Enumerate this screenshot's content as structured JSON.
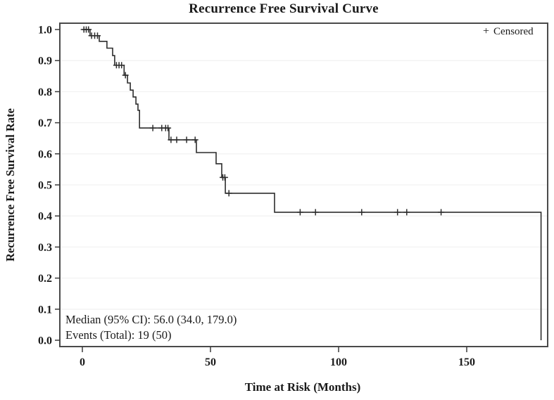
{
  "header": {
    "title": "Recurrence Free Survival Curve"
  },
  "legend": {
    "marker": "+",
    "label": "Censored"
  },
  "annotation": {
    "median_line": "Median (95% CI): 56.0 (34.0, 179.0)",
    "events_line": "Events (Total): 19 (50)"
  },
  "colors": {
    "curve": "#2d2d2d",
    "frame": "#4a4a4a",
    "tick": "#3a3a3a",
    "grid": "#f2f2f2",
    "text": "#1a1a1a",
    "background": "#ffffff"
  },
  "chart_data": {
    "type": "line",
    "subtype": "kaplan_meier_step",
    "title": "Recurrence Free Survival Curve",
    "xlabel": "Time at Risk (Months)",
    "ylabel": "Recurrence Free Survival Rate",
    "xlim": [
      -9,
      182
    ],
    "ylim": [
      -0.02,
      1.02
    ],
    "x_ticks": [
      0,
      50,
      100,
      150
    ],
    "y_ticks": [
      {
        "v": 0.0,
        "label": "0.0"
      },
      {
        "v": 0.1,
        "label": "0.1"
      },
      {
        "v": 0.2,
        "label": "0.2"
      },
      {
        "v": 0.3,
        "label": "0.3"
      },
      {
        "v": 0.4,
        "label": "0.4"
      },
      {
        "v": 0.5,
        "label": "0.5"
      },
      {
        "v": 0.6,
        "label": "0.6"
      },
      {
        "v": 0.7,
        "label": "0.7"
      },
      {
        "v": 0.8,
        "label": "0.8"
      },
      {
        "v": 0.9,
        "label": "0.9"
      },
      {
        "v": 1.0,
        "label": "1.0"
      }
    ],
    "grid": "faint horizontal lines at 0.1 intervals",
    "legend_position": "top-right-inside",
    "stats": {
      "median": 56.0,
      "ci95": [
        34.0,
        179.0
      ],
      "events": 19,
      "total": 50
    },
    "survival_steps": [
      [
        0,
        1.0
      ],
      [
        3.0,
        0.98
      ],
      [
        6.6,
        0.962
      ],
      [
        9.6,
        0.94
      ],
      [
        11.8,
        0.916
      ],
      [
        12.6,
        0.885
      ],
      [
        16.3,
        0.853
      ],
      [
        17.6,
        0.828
      ],
      [
        18.7,
        0.805
      ],
      [
        19.8,
        0.783
      ],
      [
        20.9,
        0.76
      ],
      [
        21.7,
        0.74
      ],
      [
        22.3,
        0.683
      ],
      [
        33.8,
        0.645
      ],
      [
        44.5,
        0.604
      ],
      [
        52.2,
        0.568
      ],
      [
        54.4,
        0.524
      ],
      [
        55.8,
        0.473
      ],
      [
        75.0,
        0.412
      ],
      [
        179.0,
        0.0
      ]
    ],
    "censor_marks": [
      [
        0.6,
        1.0
      ],
      [
        1.5,
        1.0
      ],
      [
        2.4,
        1.0
      ],
      [
        3.6,
        0.98
      ],
      [
        4.8,
        0.98
      ],
      [
        5.9,
        0.98
      ],
      [
        13.3,
        0.885
      ],
      [
        14.3,
        0.885
      ],
      [
        15.3,
        0.885
      ],
      [
        16.8,
        0.853
      ],
      [
        27.5,
        0.683
      ],
      [
        31.0,
        0.683
      ],
      [
        32.5,
        0.683
      ],
      [
        33.4,
        0.683
      ],
      [
        34.6,
        0.645
      ],
      [
        36.8,
        0.645
      ],
      [
        40.7,
        0.645
      ],
      [
        44.0,
        0.645
      ],
      [
        54.8,
        0.524
      ],
      [
        55.6,
        0.524
      ],
      [
        57.2,
        0.473
      ],
      [
        85.0,
        0.412
      ],
      [
        91.0,
        0.412
      ],
      [
        109.0,
        0.412
      ],
      [
        123.0,
        0.412
      ],
      [
        126.6,
        0.412
      ],
      [
        140.0,
        0.412
      ]
    ]
  }
}
